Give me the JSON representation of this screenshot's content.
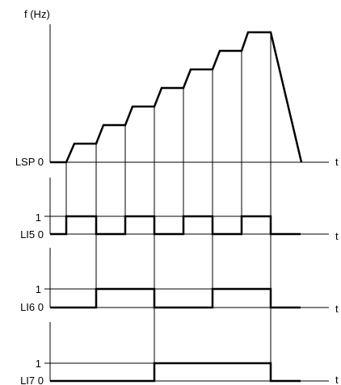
{
  "chart_data": {
    "type": "line",
    "title": "",
    "top_axis": {
      "ylabel": "f (Hz)",
      "xlabel": "t",
      "zero_label": "LSP 0"
    },
    "signals": [
      {
        "name": "LI5",
        "one_label": "1",
        "zero_label": "LI5 0",
        "xlabel": "t"
      },
      {
        "name": "LI6",
        "one_label": "1",
        "zero_label": "LI6 0",
        "xlabel": "t"
      },
      {
        "name": "LI7",
        "one_label": "1",
        "zero_label": "LI7 0",
        "xlabel": "t"
      }
    ]
  }
}
